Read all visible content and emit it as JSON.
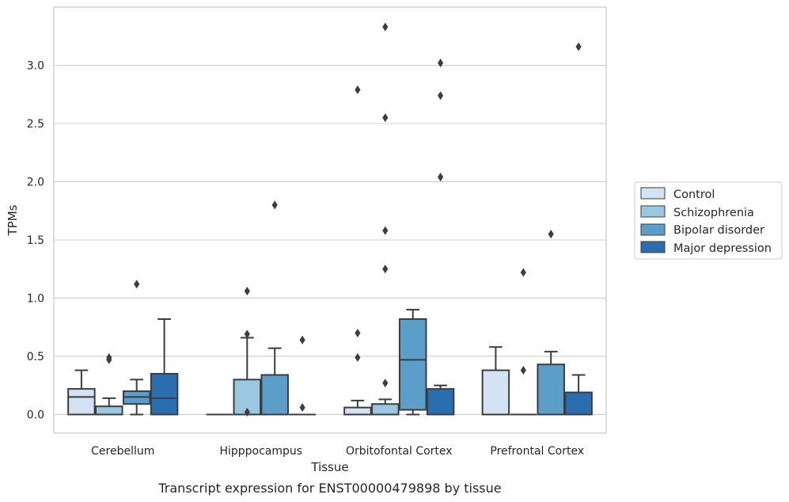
{
  "chart_data": {
    "type": "box",
    "title": "",
    "caption": "Transcript expression for ENST00000479898 by tissue",
    "xlabel": "Tissue",
    "ylabel": "TPMs",
    "ylim": [
      -0.16,
      3.5
    ],
    "yticks": [
      "0.0",
      "0.5",
      "1.0",
      "1.5",
      "2.0",
      "2.5",
      "3.0"
    ],
    "grid": "horizontal",
    "legend_position": "right",
    "categories": [
      "Cerebellum",
      "Hipppocampus",
      "Orbitofontal Cortex",
      "Prefrontal Cortex"
    ],
    "series": [
      {
        "name": "Control",
        "color": "#d4e3f3",
        "boxes": [
          {
            "q1": 0.0,
            "median": 0.15,
            "q3": 0.22,
            "wlo": 0.0,
            "whi": 0.38,
            "fliers": []
          },
          {
            "q1": 0.0,
            "median": 0.0,
            "q3": 0.0,
            "wlo": 0.0,
            "whi": 0.0,
            "fliers": []
          },
          {
            "q1": 0.0,
            "median": 0.0,
            "q3": 0.06,
            "wlo": 0.0,
            "whi": 0.12,
            "fliers": [
              0.49,
              0.7,
              2.79
            ]
          },
          {
            "q1": 0.0,
            "median": 0.0,
            "q3": 0.38,
            "wlo": 0.0,
            "whi": 0.58,
            "fliers": []
          }
        ]
      },
      {
        "name": "Schizophrenia",
        "color": "#9ac8e0",
        "boxes": [
          {
            "q1": 0.0,
            "median": 0.0,
            "q3": 0.07,
            "wlo": 0.0,
            "whi": 0.14,
            "fliers": [
              0.47,
              0.49
            ]
          },
          {
            "q1": 0.0,
            "median": 0.0,
            "q3": 0.3,
            "wlo": 0.0,
            "whi": 0.66,
            "fliers": [
              0.02,
              0.69,
              1.06
            ]
          },
          {
            "q1": 0.0,
            "median": 0.0,
            "q3": 0.09,
            "wlo": 0.0,
            "whi": 0.13,
            "fliers": [
              0.27,
              1.25,
              1.58,
              2.55,
              3.33
            ]
          },
          {
            "q1": 0.0,
            "median": 0.0,
            "q3": 0.0,
            "wlo": 0.0,
            "whi": 0.0,
            "fliers": [
              0.38,
              1.22
            ]
          }
        ]
      },
      {
        "name": "Bipolar disorder",
        "color": "#5a9ec9",
        "boxes": [
          {
            "q1": 0.09,
            "median": 0.15,
            "q3": 0.2,
            "wlo": 0.0,
            "whi": 0.3,
            "fliers": [
              1.12
            ]
          },
          {
            "q1": 0.0,
            "median": 0.0,
            "q3": 0.34,
            "wlo": 0.0,
            "whi": 0.57,
            "fliers": [
              1.8
            ]
          },
          {
            "q1": 0.04,
            "median": 0.47,
            "q3": 0.82,
            "wlo": 0.0,
            "whi": 0.9,
            "fliers": []
          },
          {
            "q1": 0.0,
            "median": 0.0,
            "q3": 0.43,
            "wlo": 0.0,
            "whi": 0.54,
            "fliers": [
              1.55
            ]
          }
        ]
      },
      {
        "name": "Major depression",
        "color": "#2a6eb0",
        "boxes": [
          {
            "q1": 0.0,
            "median": 0.14,
            "q3": 0.35,
            "wlo": 0.0,
            "whi": 0.82,
            "fliers": []
          },
          {
            "q1": 0.0,
            "median": 0.0,
            "q3": 0.0,
            "wlo": 0.0,
            "whi": 0.0,
            "fliers": [
              0.06,
              0.64
            ]
          },
          {
            "q1": 0.0,
            "median": 0.0,
            "q3": 0.22,
            "wlo": 0.0,
            "whi": 0.25,
            "fliers": [
              2.04,
              2.74,
              3.02
            ]
          },
          {
            "q1": 0.0,
            "median": 0.0,
            "q3": 0.19,
            "wlo": 0.0,
            "whi": 0.34,
            "fliers": [
              3.16
            ]
          }
        ]
      }
    ]
  }
}
